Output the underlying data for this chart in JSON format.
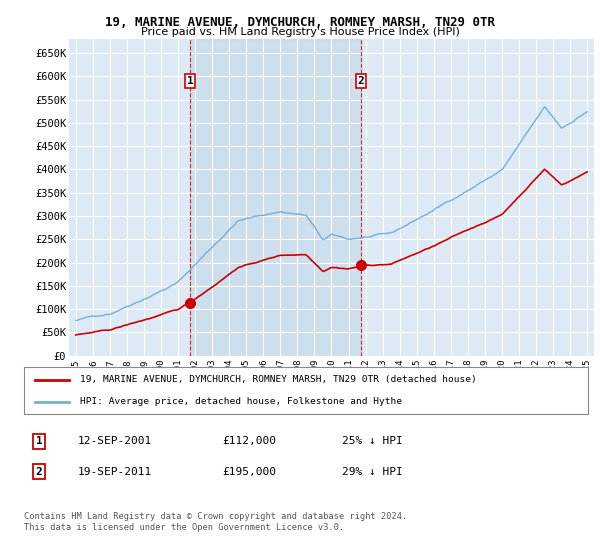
{
  "title": "19, MARINE AVENUE, DYMCHURCH, ROMNEY MARSH, TN29 0TR",
  "subtitle": "Price paid vs. HM Land Registry's House Price Index (HPI)",
  "ylabel_ticks": [
    "£0",
    "£50K",
    "£100K",
    "£150K",
    "£200K",
    "£250K",
    "£300K",
    "£350K",
    "£400K",
    "£450K",
    "£500K",
    "£550K",
    "£600K",
    "£650K"
  ],
  "ytick_values": [
    0,
    50000,
    100000,
    150000,
    200000,
    250000,
    300000,
    350000,
    400000,
    450000,
    500000,
    550000,
    600000,
    650000
  ],
  "ylim": [
    0,
    680000
  ],
  "hpi_color": "#7aadd4",
  "price_color": "#cc0000",
  "bg_color": "#ddeaf5",
  "shade_color": "#c5d9ee",
  "grid_color": "#ffffff",
  "sale1_date": 2001.72,
  "sale1_price": 112000,
  "sale1_label": "1",
  "sale2_date": 2011.72,
  "sale2_price": 195000,
  "sale2_label": "2",
  "legend_property": "19, MARINE AVENUE, DYMCHURCH, ROMNEY MARSH, TN29 0TR (detached house)",
  "legend_hpi": "HPI: Average price, detached house, Folkestone and Hythe",
  "table_row1": [
    "1",
    "12-SEP-2001",
    "£112,000",
    "25% ↓ HPI"
  ],
  "table_row2": [
    "2",
    "19-SEP-2011",
    "£195,000",
    "29% ↓ HPI"
  ],
  "footnote": "Contains HM Land Registry data © Crown copyright and database right 2024.\nThis data is licensed under the Open Government Licence v3.0.",
  "xstart": 1995,
  "xend": 2025
}
